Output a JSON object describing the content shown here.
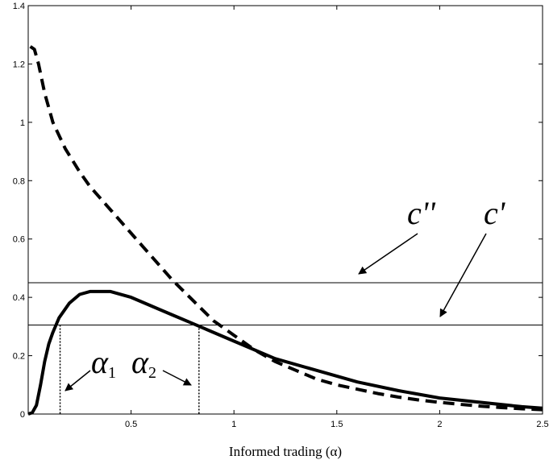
{
  "chart_data": {
    "type": "line",
    "xlabel": "Informed trading (α)",
    "xlim": [
      0,
      2.5
    ],
    "ylim": [
      0,
      1.4
    ],
    "x_ticks": [
      "0.5",
      "1",
      "1.5",
      "2",
      "2.5"
    ],
    "y_ticks": [
      "0",
      "0.2",
      "0.4",
      "0.6",
      "0.8",
      "1",
      "1.2",
      "1.4"
    ],
    "grid": false,
    "series": [
      {
        "style": "dashed",
        "x": [
          0.01,
          0.03,
          0.05,
          0.08,
          0.12,
          0.18,
          0.25,
          0.3,
          0.4,
          0.5,
          0.6,
          0.7,
          0.8,
          0.9,
          1.0,
          1.1,
          1.2,
          1.3,
          1.4,
          1.5,
          1.6,
          1.7,
          1.8,
          1.9,
          2.0,
          2.1,
          2.2,
          2.3,
          2.4,
          2.5
        ],
        "y": [
          1.26,
          1.25,
          1.2,
          1.1,
          1.0,
          0.91,
          0.83,
          0.78,
          0.7,
          0.62,
          0.54,
          0.46,
          0.39,
          0.32,
          0.27,
          0.22,
          0.18,
          0.15,
          0.12,
          0.1,
          0.085,
          0.07,
          0.058,
          0.048,
          0.04,
          0.033,
          0.027,
          0.022,
          0.018,
          0.015
        ]
      },
      {
        "style": "solid",
        "x": [
          0.0,
          0.02,
          0.04,
          0.06,
          0.08,
          0.1,
          0.12,
          0.15,
          0.2,
          0.25,
          0.3,
          0.35,
          0.4,
          0.5,
          0.6,
          0.7,
          0.8,
          0.9,
          1.0,
          1.2,
          1.4,
          1.6,
          1.8,
          2.0,
          2.2,
          2.4,
          2.5
        ],
        "y": [
          0.0,
          0.005,
          0.03,
          0.1,
          0.18,
          0.24,
          0.28,
          0.33,
          0.38,
          0.41,
          0.42,
          0.42,
          0.42,
          0.4,
          0.37,
          0.34,
          0.31,
          0.28,
          0.25,
          0.19,
          0.15,
          0.11,
          0.08,
          0.055,
          0.04,
          0.025,
          0.02
        ]
      }
    ],
    "hlines": [
      {
        "label": "c''",
        "y": 0.45
      },
      {
        "label": "c'",
        "y": 0.305
      }
    ],
    "vlines": [
      {
        "label": "α1",
        "x": 0.155
      },
      {
        "label": "α2",
        "x": 0.83
      }
    ],
    "annotations": {
      "c_double_prime": "c''",
      "c_prime": "c'",
      "alpha1": {
        "base": "α",
        "sub": "1"
      },
      "alpha2": {
        "base": "α",
        "sub": "2"
      }
    }
  }
}
